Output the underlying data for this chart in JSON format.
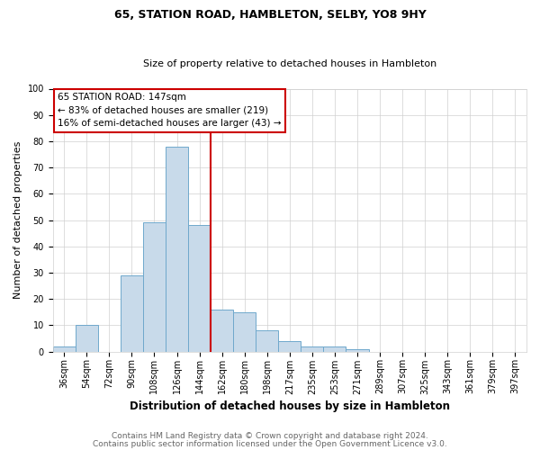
{
  "title": "65, STATION ROAD, HAMBLETON, SELBY, YO8 9HY",
  "subtitle": "Size of property relative to detached houses in Hambleton",
  "xlabel": "Distribution of detached houses by size in Hambleton",
  "ylabel": "Number of detached properties",
  "bar_labels": [
    "36sqm",
    "54sqm",
    "72sqm",
    "90sqm",
    "108sqm",
    "126sqm",
    "144sqm",
    "162sqm",
    "180sqm",
    "198sqm",
    "217sqm",
    "235sqm",
    "253sqm",
    "271sqm",
    "289sqm",
    "307sqm",
    "325sqm",
    "343sqm",
    "361sqm",
    "379sqm",
    "397sqm"
  ],
  "bar_values": [
    2,
    10,
    0,
    29,
    49,
    78,
    48,
    16,
    15,
    8,
    4,
    2,
    2,
    1,
    0,
    0,
    0,
    0,
    0,
    0,
    0
  ],
  "bar_color": "#c8daea",
  "bar_edge_color": "#6fa8cc",
  "vline_color": "#cc0000",
  "vline_index": 6.5,
  "annotation_box_text": "65 STATION ROAD: 147sqm\n← 83% of detached houses are smaller (219)\n16% of semi-detached houses are larger (43) →",
  "annotation_box_color": "#cc0000",
  "annotation_box_bg": "#ffffff",
  "ylim": [
    0,
    100
  ],
  "yticks": [
    0,
    10,
    20,
    30,
    40,
    50,
    60,
    70,
    80,
    90,
    100
  ],
  "footer_line1": "Contains HM Land Registry data © Crown copyright and database right 2024.",
  "footer_line2": "Contains public sector information licensed under the Open Government Licence v3.0.",
  "title_fontsize": 9,
  "subtitle_fontsize": 8,
  "ylabel_fontsize": 8,
  "xlabel_fontsize": 8.5,
  "tick_fontsize": 7,
  "footer_fontsize": 6.5,
  "annotation_fontsize": 7.5,
  "bg_color": "#ffffff",
  "grid_color": "#d0d0d0"
}
